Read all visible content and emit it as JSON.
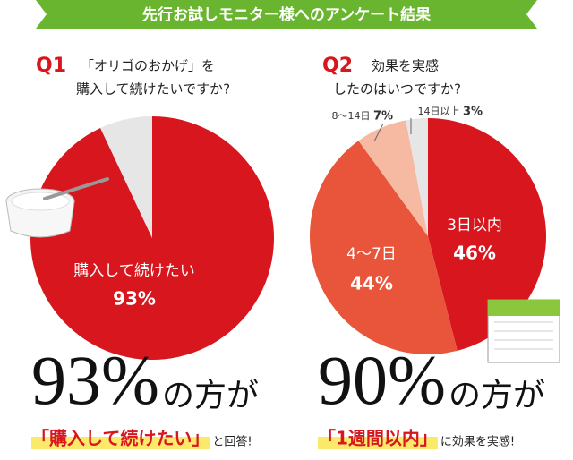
{
  "banner": "先行お試しモニター様へのアンケート結果",
  "chart_data": [
    {
      "type": "pie",
      "title": "Q1",
      "subtitle": [
        "「オリゴのおかげ」を",
        "購入して続けたいですか?"
      ],
      "categories": [
        "購入して続けたい",
        null
      ],
      "values": [
        93,
        7
      ],
      "value_labels": [
        "93%",
        null
      ],
      "colors": [
        "#d7161e",
        "#e6e6e6"
      ],
      "summary": {
        "headline": "93%",
        "suffix": "の方が",
        "answer": "「購入して続けたい」",
        "tail": "と回答!"
      }
    },
    {
      "type": "pie",
      "title": "Q2",
      "subtitle": [
        "効果を実感",
        "したのはいつですか?"
      ],
      "categories": [
        "3日以内",
        "4〜7日",
        "8〜14日",
        "14日以上"
      ],
      "values": [
        46,
        44,
        7,
        3
      ],
      "value_labels": [
        "46%",
        "44%",
        "7%",
        "3%"
      ],
      "colors": [
        "#d7161e",
        "#e8553a",
        "#f6b9a1",
        "#e6e6e6"
      ],
      "summary": {
        "headline": "90%",
        "suffix": "の方が",
        "answer": "「1週間以内」",
        "tail": "に効果を実感!"
      }
    }
  ]
}
